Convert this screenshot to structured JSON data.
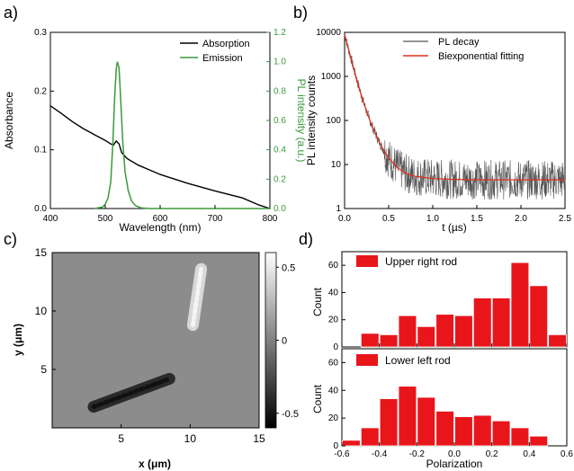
{
  "panels": {
    "a": "a)",
    "b": "b)",
    "c": "c)",
    "d": "d)"
  },
  "chart_data": [
    {
      "panel": "a",
      "type": "line",
      "xlabel": "Wavelength (nm)",
      "ylabel": "Absorbance",
      "y2label": "PL intensity (a.u.)",
      "xlim": [
        400,
        800
      ],
      "ylim": [
        0,
        0.3
      ],
      "y2lim": [
        0,
        1.2
      ],
      "xticks": [
        "400",
        "500",
        "600",
        "700",
        "800"
      ],
      "yticks": [
        "0.0",
        "0.1",
        "0.2",
        "0.3"
      ],
      "y2ticks": [
        "0.0",
        "0.2",
        "0.4",
        "0.6",
        "0.8",
        "1.0",
        "1.2"
      ],
      "legend_position": "top-right",
      "colors": {
        "absorption": "#000000",
        "emission": "#3a9a3a",
        "right_axis": "#3a9a3a"
      },
      "series": [
        {
          "name": "Absorption",
          "axis": "left",
          "x": [
            400,
            420,
            440,
            460,
            480,
            500,
            510,
            515,
            520,
            525,
            530,
            540,
            560,
            580,
            600,
            650,
            700,
            750,
            780,
            800
          ],
          "y": [
            0.175,
            0.162,
            0.148,
            0.136,
            0.126,
            0.116,
            0.11,
            0.108,
            0.115,
            0.11,
            0.095,
            0.085,
            0.074,
            0.066,
            0.058,
            0.043,
            0.03,
            0.018,
            0.006,
            0.0
          ]
        },
        {
          "name": "Emission",
          "axis": "right",
          "x": [
            480,
            495,
            500,
            505,
            510,
            514,
            517,
            520,
            522,
            525,
            528,
            532,
            536,
            542,
            548,
            555,
            565,
            580,
            800
          ],
          "y": [
            0.0,
            0.01,
            0.03,
            0.07,
            0.18,
            0.45,
            0.75,
            0.95,
            1.0,
            0.96,
            0.75,
            0.45,
            0.25,
            0.12,
            0.05,
            0.02,
            0.005,
            0.0,
            0.0
          ]
        }
      ]
    },
    {
      "panel": "b",
      "type": "line",
      "xlabel": "t (µs)",
      "ylabel": "PL intensity counts",
      "xlim": [
        0,
        2.5
      ],
      "ylim": [
        1,
        10000
      ],
      "yscale": "log",
      "xticks": [
        "0.0",
        "0.5",
        "1.0",
        "1.5",
        "2.0",
        "2.5"
      ],
      "yticks": [
        "1",
        "10",
        "100",
        "1000",
        "10000"
      ],
      "legend_position": "top-right",
      "colors": {
        "decay": "#666666",
        "fit": "#e03020"
      },
      "series": [
        {
          "name": "PL decay",
          "x": [
            0.0,
            2.5
          ],
          "y": [
            10000,
            4.5
          ],
          "noisy": true
        },
        {
          "name": "Biexponential fitting",
          "x": [
            0.0,
            0.05,
            0.1,
            0.15,
            0.2,
            0.25,
            0.3,
            0.4,
            0.5,
            0.6,
            0.7,
            0.8,
            1.0,
            1.2,
            1.5,
            2.0,
            2.5
          ],
          "y": [
            9000,
            3800,
            1600,
            700,
            320,
            160,
            85,
            30,
            14,
            8.5,
            6.2,
            5.4,
            4.8,
            4.6,
            4.5,
            4.5,
            4.5
          ]
        }
      ]
    },
    {
      "panel": "c",
      "type": "heatmap",
      "xlabel": "x (μm)",
      "ylabel": "y (μm)",
      "xlim": [
        0,
        15
      ],
      "ylim": [
        0,
        15
      ],
      "xticks": [
        "5",
        "10",
        "15"
      ],
      "yticks": [
        "5",
        "10",
        "15"
      ],
      "colorbar": {
        "ticks": [
          "0.5",
          "0",
          "-0.5"
        ],
        "min": -0.6,
        "max": 0.6
      },
      "rods": [
        {
          "name": "Upper right rod",
          "x_start": 10.2,
          "y_start": 8.8,
          "x_end": 10.8,
          "y_end": 13.6,
          "value": 0.35
        },
        {
          "name": "Lower left rod",
          "x_start": 3.0,
          "y_start": 1.8,
          "x_end": 8.5,
          "y_end": 4.2,
          "value": -0.35
        }
      ],
      "background_value": 0.0
    },
    {
      "panel": "d",
      "type": "bar",
      "xlabel": "Polarization",
      "xlim": [
        -0.6,
        0.6
      ],
      "xticks": [
        "-0.6",
        "-0.4",
        "-0.2",
        "0.0",
        "0.2",
        "0.4",
        "0.6"
      ],
      "bin_width": 0.1,
      "bar_color": "#e8161b",
      "subplots": [
        {
          "name": "Upper right rod",
          "ylabel": "Count",
          "ylim": [
            0,
            70
          ],
          "yticks": [
            "0",
            "20",
            "40",
            "60"
          ],
          "bin_centers": [
            -0.45,
            -0.35,
            -0.25,
            -0.15,
            -0.05,
            0.05,
            0.15,
            0.25,
            0.35,
            0.45,
            0.55
          ],
          "values": [
            10,
            9,
            23,
            15,
            24,
            23,
            36,
            36,
            62,
            45,
            9
          ]
        },
        {
          "name": "Lower left rod",
          "ylabel": "Count",
          "ylim": [
            0,
            70
          ],
          "yticks": [
            "0",
            "20",
            "40",
            "60"
          ],
          "bin_centers": [
            -0.55,
            -0.45,
            -0.35,
            -0.25,
            -0.15,
            -0.05,
            0.05,
            0.15,
            0.25,
            0.35,
            0.45
          ],
          "values": [
            4,
            13,
            34,
            43,
            35,
            25,
            21,
            22,
            18,
            13,
            7
          ]
        }
      ]
    }
  ]
}
